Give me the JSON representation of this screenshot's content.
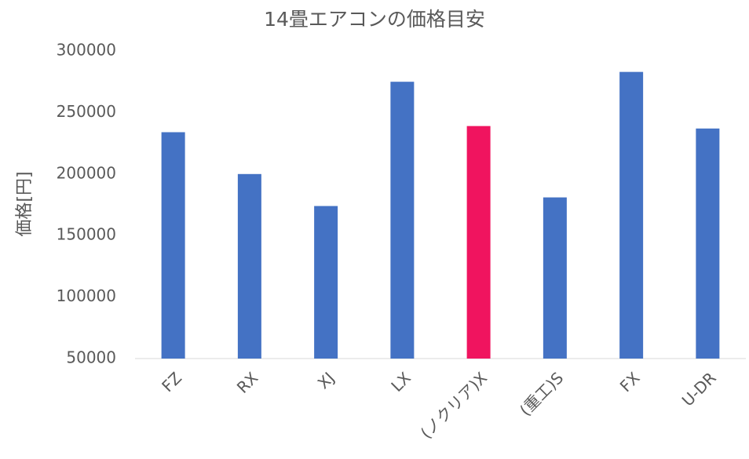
{
  "chart_data": {
    "type": "bar",
    "title": "14畳エアコンの価格目安",
    "y_label": "価格[円]",
    "categories": [
      "FZ",
      "RX",
      "XJ",
      "LX",
      "(ノクリア)X",
      "(重工)S",
      "FX",
      "U-DR"
    ],
    "values": [
      234000,
      200000,
      174000,
      275000,
      239000,
      181000,
      283000,
      237000
    ],
    "colors": [
      "#4472c4",
      "#4472c4",
      "#4472c4",
      "#4472c4",
      "#f0145f",
      "#4472c4",
      "#4472c4",
      "#4472c4"
    ],
    "ylim": [
      50000,
      300000
    ],
    "yticks": [
      50000,
      100000,
      150000,
      200000,
      250000,
      300000
    ],
    "grid": false
  }
}
